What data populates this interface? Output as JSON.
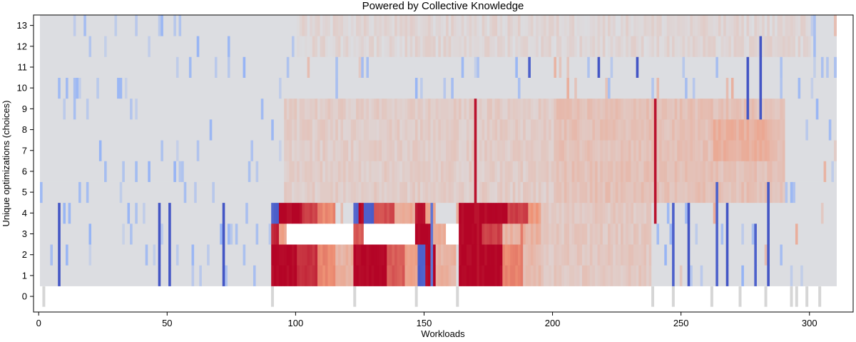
{
  "chart_data": {
    "type": "heatmap",
    "title": "Powered by Collective Knowledge",
    "xlabel": "Workloads",
    "ylabel": "Unique optimizations (choices)",
    "xlim": [
      -2,
      317
    ],
    "ylim": [
      -0.75,
      13.5
    ],
    "x_ticks": [
      0,
      50,
      100,
      150,
      200,
      250,
      300
    ],
    "y_ticks": [
      0,
      1,
      2,
      3,
      4,
      5,
      6,
      7,
      8,
      9,
      10,
      11,
      12,
      13
    ],
    "workload_count": 310,
    "colormap": "coolwarm",
    "colors": {
      "neutral": "#dcdde1",
      "blue_strong": "#3b4cc0",
      "red_strong": "#b40426",
      "zero_row_marker": "#d6d6d6"
    },
    "grid": false,
    "legend": "none",
    "row_zero_markers": [
      2,
      91,
      123,
      147,
      163,
      239,
      247,
      262,
      273,
      283,
      293,
      295,
      299,
      304
    ],
    "regions": [
      {
        "rows": [
          1,
          2
        ],
        "x": [
          90,
          100
        ],
        "value": 1.0
      },
      {
        "rows": [
          1,
          2
        ],
        "x": [
          100,
          108
        ],
        "value": 0.85
      },
      {
        "rows": [
          1,
          2
        ],
        "x": [
          108,
          115
        ],
        "value": 0.55
      },
      {
        "rows": [
          1,
          2
        ],
        "x": [
          115,
          122
        ],
        "value": 0.3
      },
      {
        "rows": [
          1,
          2
        ],
        "x": [
          122,
          135
        ],
        "value": 1.0
      },
      {
        "rows": [
          1,
          2
        ],
        "x": [
          135,
          142
        ],
        "value": 0.7
      },
      {
        "rows": [
          1,
          2
        ],
        "x": [
          142,
          147
        ],
        "value": 0.4
      },
      {
        "rows": [
          1,
          2
        ],
        "x": [
          147,
          150
        ],
        "value": -0.9
      },
      {
        "rows": [
          1,
          2
        ],
        "x": [
          150,
          154
        ],
        "value": 1.0
      },
      {
        "rows": [
          1,
          2
        ],
        "x": [
          154,
          162
        ],
        "value": 0.3
      },
      {
        "rows": [
          1,
          2
        ],
        "x": [
          163,
          180
        ],
        "value": 1.0
      },
      {
        "rows": [
          1,
          2
        ],
        "x": [
          180,
          188
        ],
        "value": 0.55
      },
      {
        "rows": [
          1,
          2
        ],
        "x": [
          188,
          195
        ],
        "value": 0.25
      },
      {
        "rows": [
          3
        ],
        "x": [
          90,
          93
        ],
        "value": 0.9
      },
      {
        "rows": [
          3
        ],
        "x": [
          93,
          96
        ],
        "value": 0.4
      },
      {
        "rows": [
          3
        ],
        "x": [
          122,
          126
        ],
        "value": 0.7
      },
      {
        "rows": [
          3
        ],
        "x": [
          146,
          152
        ],
        "value": 1.0
      },
      {
        "rows": [
          3
        ],
        "x": [
          152,
          158
        ],
        "value": 0.35
      },
      {
        "rows": [
          3
        ],
        "x": [
          163,
          172
        ],
        "value": 1.0
      },
      {
        "rows": [
          3
        ],
        "x": [
          172,
          180
        ],
        "value": 0.8
      },
      {
        "rows": [
          3
        ],
        "x": [
          180,
          195
        ],
        "value": 0.3
      },
      {
        "rows": [
          4
        ],
        "x": [
          90,
          93
        ],
        "value": -0.9
      },
      {
        "rows": [
          4
        ],
        "x": [
          93,
          102
        ],
        "value": 1.0
      },
      {
        "rows": [
          4
        ],
        "x": [
          102,
          108
        ],
        "value": 0.8
      },
      {
        "rows": [
          4
        ],
        "x": [
          108,
          115
        ],
        "value": 0.55
      },
      {
        "rows": [
          4
        ],
        "x": [
          122,
          124
        ],
        "value": -0.9
      },
      {
        "rows": [
          4
        ],
        "x": [
          124,
          126
        ],
        "value": 1.0
      },
      {
        "rows": [
          4
        ],
        "x": [
          126,
          130
        ],
        "value": -0.9
      },
      {
        "rows": [
          4
        ],
        "x": [
          130,
          138
        ],
        "value": 0.75
      },
      {
        "rows": [
          4
        ],
        "x": [
          138,
          146
        ],
        "value": 0.35
      },
      {
        "rows": [
          4
        ],
        "x": [
          146,
          150
        ],
        "value": 0.95
      },
      {
        "rows": [
          4
        ],
        "x": [
          150,
          154
        ],
        "value": 0.4
      },
      {
        "rows": [
          4
        ],
        "x": [
          163,
          182
        ],
        "value": 1.0
      },
      {
        "rows": [
          4
        ],
        "x": [
          182,
          190
        ],
        "value": 0.8
      },
      {
        "rows": [
          4
        ],
        "x": [
          190,
          200
        ],
        "value": 0.45
      },
      {
        "rows": [
          4
        ],
        "x": [
          200,
          238
        ],
        "value": 0.28
      },
      {
        "rows": [
          1,
          2,
          3,
          4
        ],
        "x": [
          195,
          238
        ],
        "value": 0.15
      },
      {
        "rows": [
          5,
          6,
          7,
          8,
          9
        ],
        "x": [
          95,
          200
        ],
        "value": 0.12
      },
      {
        "rows": [
          5,
          6,
          7,
          8,
          9
        ],
        "x": [
          200,
          290
        ],
        "value": 0.2
      },
      {
        "rows": [
          7,
          8
        ],
        "x": [
          262,
          285
        ],
        "value": 0.32
      },
      {
        "rows": [
          12,
          13
        ],
        "x": [
          100,
          300
        ],
        "value": 0.06
      }
    ],
    "stripes": [
      {
        "x": 7,
        "rows": [
          1,
          2,
          3,
          4
        ],
        "value": -0.95
      },
      {
        "x": 46,
        "rows": [
          1,
          2,
          3,
          4
        ],
        "value": -0.95
      },
      {
        "x": 50,
        "rows": [
          1,
          2,
          3,
          4
        ],
        "value": -0.95
      },
      {
        "x": 71,
        "rows": [
          1,
          2,
          3,
          4
        ],
        "value": -0.95
      },
      {
        "x": 148,
        "rows": [
          1,
          2
        ],
        "value": -0.9
      },
      {
        "x": 152,
        "rows": [
          1,
          2,
          3,
          4
        ],
        "value": -0.8
      },
      {
        "x": 169,
        "rows": [
          4,
          5,
          6,
          7,
          8,
          9
        ],
        "value": 0.95
      },
      {
        "x": 187,
        "rows": [
          1,
          2,
          3
        ],
        "value": 0.6
      },
      {
        "x": 239,
        "rows": [
          4,
          5,
          6,
          7,
          8,
          9
        ],
        "value": 0.95
      },
      {
        "x": 246,
        "rows": [
          1,
          2,
          3,
          4
        ],
        "value": -0.9
      },
      {
        "x": 252,
        "rows": [
          1,
          2,
          3,
          4
        ],
        "value": -0.95
      },
      {
        "x": 263,
        "rows": [
          1,
          2,
          3,
          4,
          5
        ],
        "value": -0.9
      },
      {
        "x": 267,
        "rows": [
          1,
          2,
          3,
          4
        ],
        "value": -0.95
      },
      {
        "x": 278,
        "rows": [
          1,
          2,
          3
        ],
        "value": -0.9
      },
      {
        "x": 283,
        "rows": [
          1,
          2,
          3,
          4,
          5
        ],
        "value": -0.95
      },
      {
        "x": 275,
        "rows": [
          9,
          10,
          11
        ],
        "value": -0.95
      },
      {
        "x": 280,
        "rows": [
          9,
          10,
          11,
          12
        ],
        "value": -0.95
      },
      {
        "x": 217,
        "rows": [
          11
        ],
        "value": -0.95
      },
      {
        "x": 232,
        "rows": [
          11
        ],
        "value": -0.95
      },
      {
        "x": 190,
        "rows": [
          11
        ],
        "value": -0.9
      },
      {
        "x": 170,
        "rows": [
          1,
          2,
          3,
          4
        ],
        "value": 0.95
      }
    ]
  }
}
